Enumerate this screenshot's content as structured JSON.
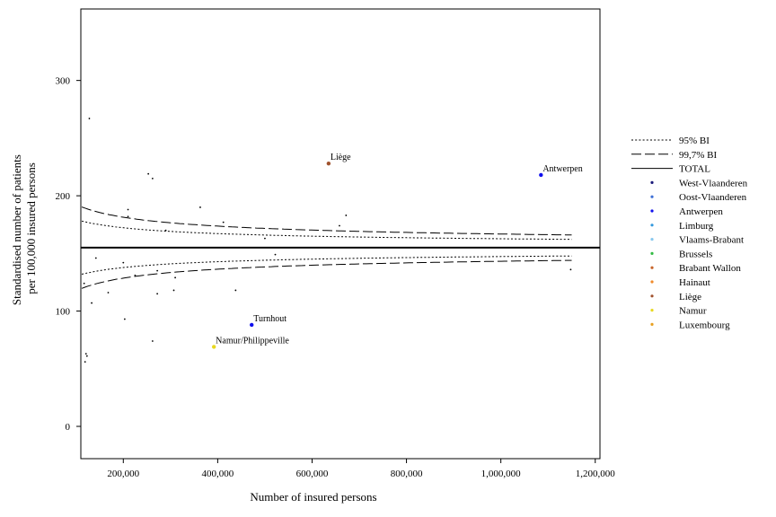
{
  "chart_data": {
    "type": "scatter",
    "xlabel": "Number of insured persons",
    "ylabel_lines": [
      "Standardised number of patients",
      "per 100,000 insured persons"
    ],
    "xlim": [
      110000,
      1210000
    ],
    "ylim": [
      -28,
      362
    ],
    "x_ticks": [
      200000,
      400000,
      600000,
      800000,
      1000000,
      1200000
    ],
    "x_tick_labels": [
      "200,000",
      "400,000",
      "600,000",
      "800,000",
      "1,000,000",
      "1,200,000"
    ],
    "y_ticks": [
      0,
      100,
      200,
      300
    ],
    "y_tick_labels": [
      "0",
      "100",
      "200",
      "300"
    ],
    "total": 155,
    "funnel": {
      "x_start": 112000,
      "x_end": 1150000,
      "ci95_z": 1.96,
      "ci997_z": 3.0
    },
    "legend": {
      "lines": [
        {
          "label": "95% BI",
          "style": "dotted"
        },
        {
          "label": "99,7% BI",
          "style": "dashed"
        },
        {
          "label": "TOTAL",
          "style": "solid"
        }
      ],
      "regions": [
        {
          "label": "West-Vlaanderen",
          "color": "#1a1a7a"
        },
        {
          "label": "Oost-Vlaanderen",
          "color": "#3d6fd6"
        },
        {
          "label": "Antwerpen",
          "color": "#1010ee"
        },
        {
          "label": "Limburg",
          "color": "#3399dd"
        },
        {
          "label": "Vlaams-Brabant",
          "color": "#88c8ee"
        },
        {
          "label": "Brussels",
          "color": "#33bb44"
        },
        {
          "label": "Brabant Wallon",
          "color": "#c8642a"
        },
        {
          "label": "Hainaut",
          "color": "#f08a2a"
        },
        {
          "label": "Liège",
          "color": "#a0522d"
        },
        {
          "label": "Namur",
          "color": "#e8d820"
        },
        {
          "label": "Luxembourg",
          "color": "#e8a020"
        }
      ]
    },
    "labeled_points": [
      {
        "label": "Liège",
        "x": 635000,
        "y": 228,
        "color": "#a0522d"
      },
      {
        "label": "Antwerpen",
        "x": 1085000,
        "y": 218,
        "color": "#1010ee"
      },
      {
        "label": "Turnhout",
        "x": 472000,
        "y": 88,
        "color": "#1010ee"
      },
      {
        "label": "Namur/Philippeville",
        "x": 392000,
        "y": 69,
        "color": "#e8d820"
      }
    ],
    "points": [
      {
        "x": 128000,
        "y": 267
      },
      {
        "x": 253000,
        "y": 219
      },
      {
        "x": 262000,
        "y": 215
      },
      {
        "x": 210000,
        "y": 188
      },
      {
        "x": 210000,
        "y": 182
      },
      {
        "x": 363000,
        "y": 190
      },
      {
        "x": 412000,
        "y": 177
      },
      {
        "x": 290000,
        "y": 170
      },
      {
        "x": 500000,
        "y": 163
      },
      {
        "x": 658000,
        "y": 174
      },
      {
        "x": 672000,
        "y": 183
      },
      {
        "x": 522000,
        "y": 149
      },
      {
        "x": 142000,
        "y": 146
      },
      {
        "x": 200000,
        "y": 142
      },
      {
        "x": 225000,
        "y": 131
      },
      {
        "x": 272000,
        "y": 135
      },
      {
        "x": 310000,
        "y": 129
      },
      {
        "x": 117000,
        "y": 124
      },
      {
        "x": 168000,
        "y": 116
      },
      {
        "x": 307000,
        "y": 118
      },
      {
        "x": 272000,
        "y": 115
      },
      {
        "x": 438000,
        "y": 118
      },
      {
        "x": 133000,
        "y": 107
      },
      {
        "x": 203000,
        "y": 93
      },
      {
        "x": 262000,
        "y": 74
      },
      {
        "x": 121000,
        "y": 63
      },
      {
        "x": 123000,
        "y": 61
      },
      {
        "x": 119000,
        "y": 56
      },
      {
        "x": 1148000,
        "y": 136
      }
    ]
  }
}
